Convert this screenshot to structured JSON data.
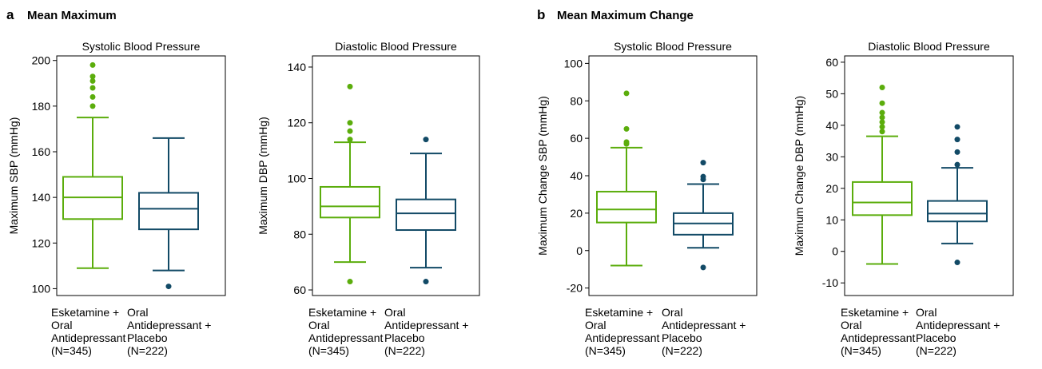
{
  "sections": [
    {
      "letter": "a",
      "title": "Mean Maximum"
    },
    {
      "letter": "b",
      "title": "Mean Maximum Change"
    }
  ],
  "colors": {
    "esketamine": "#5bad0c",
    "placebo": "#124a66"
  },
  "chart_data": [
    {
      "type": "box",
      "section": "a",
      "title": "Systolic Blood Pressure",
      "ylabel": "Maximum SBP (mmHg)",
      "ylim": [
        97,
        202
      ],
      "yticks": [
        100,
        120,
        140,
        160,
        180,
        200
      ],
      "categories": [
        [
          "Esketamine +",
          "Oral",
          "Antidepressant",
          "(N=345)"
        ],
        [
          "Oral",
          "Antidepressant +",
          "Placebo",
          "(N=222)"
        ]
      ],
      "series": [
        {
          "color": "#5bad0c",
          "whisker_low": 109,
          "q1": 130.5,
          "median": 140,
          "q3": 149,
          "whisker_high": 175,
          "outliers": [
            180,
            184,
            188,
            191,
            193,
            198
          ]
        },
        {
          "color": "#124a66",
          "whisker_low": 108,
          "q1": 126,
          "median": 135,
          "q3": 142,
          "whisker_high": 166,
          "outliers": [
            101
          ]
        }
      ]
    },
    {
      "type": "box",
      "section": "a",
      "title": "Diastolic Blood Pressure",
      "ylabel": "Maximum DBP (mmHg)",
      "ylim": [
        58,
        144
      ],
      "yticks": [
        60,
        80,
        100,
        120,
        140
      ],
      "categories": [
        [
          "Esketamine +",
          "Oral",
          "Antidepressant",
          "(N=345)"
        ],
        [
          "Oral",
          "Antidepressant +",
          "Placebo",
          "(N=222)"
        ]
      ],
      "series": [
        {
          "color": "#5bad0c",
          "whisker_low": 70,
          "q1": 86,
          "median": 90,
          "q3": 97,
          "whisker_high": 113,
          "outliers": [
            63,
            114,
            117,
            120,
            133
          ]
        },
        {
          "color": "#124a66",
          "whisker_low": 68,
          "q1": 81.5,
          "median": 87.5,
          "q3": 92.5,
          "whisker_high": 109,
          "outliers": [
            63,
            114
          ]
        }
      ]
    },
    {
      "type": "box",
      "section": "b",
      "title": "Systolic Blood Pressure",
      "ylabel": "Maximum Change SBP (mmHg)",
      "ylim": [
        -24,
        104
      ],
      "yticks": [
        -20,
        0,
        20,
        40,
        60,
        80,
        100
      ],
      "categories": [
        [
          "Esketamine +",
          "Oral",
          "Antidepressant",
          "(N=345)"
        ],
        [
          "Oral",
          "Antidepressant +",
          "Placebo",
          "(N=222)"
        ]
      ],
      "series": [
        {
          "color": "#5bad0c",
          "whisker_low": -8,
          "q1": 15,
          "median": 22,
          "q3": 31.5,
          "whisker_high": 55,
          "outliers": [
            57,
            58,
            65,
            84
          ]
        },
        {
          "color": "#124a66",
          "whisker_low": 1.5,
          "q1": 8.5,
          "median": 14.5,
          "q3": 20,
          "whisker_high": 35.5,
          "outliers": [
            -9,
            38,
            39.5,
            47
          ]
        }
      ]
    },
    {
      "type": "box",
      "section": "b",
      "title": "Diastolic Blood Pressure",
      "ylabel": "Maximum Change DBP (mmHg)",
      "ylim": [
        -14,
        62
      ],
      "yticks": [
        -10,
        0,
        10,
        20,
        30,
        40,
        50,
        60
      ],
      "categories": [
        [
          "Esketamine +",
          "Oral",
          "Antidepressant",
          "(N=345)"
        ],
        [
          "Oral",
          "Antidepressant +",
          "Placebo",
          "(N=222)"
        ]
      ],
      "series": [
        {
          "color": "#5bad0c",
          "whisker_low": -4,
          "q1": 11.5,
          "median": 15.5,
          "q3": 22,
          "whisker_high": 36.5,
          "outliers": [
            38,
            39.5,
            41,
            42.5,
            44,
            47,
            52
          ]
        },
        {
          "color": "#124a66",
          "whisker_low": 2.5,
          "q1": 9.5,
          "median": 12,
          "q3": 16,
          "whisker_high": 26.5,
          "outliers": [
            -3.5,
            27.5,
            31.5,
            35.5,
            39.5
          ]
        }
      ]
    }
  ]
}
